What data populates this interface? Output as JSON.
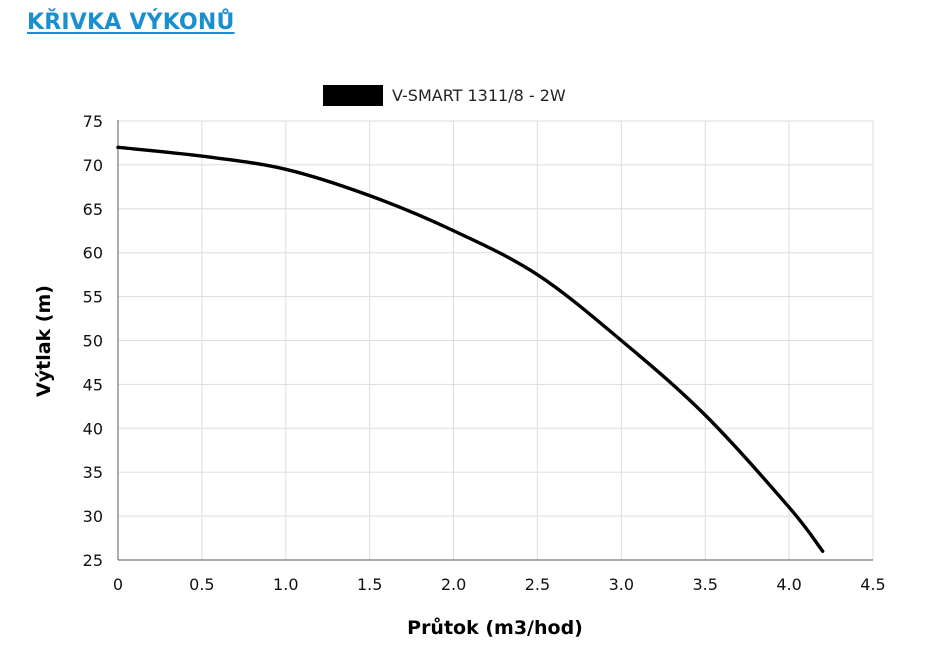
{
  "header": {
    "title": "KŘIVKA VÝKONŮ"
  },
  "chart_data": {
    "type": "line",
    "title": "",
    "xlabel": "Průtok (m3/hod)",
    "ylabel": "Výtlak (m)",
    "xlim": [
      0,
      4.5
    ],
    "ylim": [
      25,
      75
    ],
    "x_ticks": [
      "0",
      "0.5",
      "1.0",
      "1.5",
      "2.0",
      "2.5",
      "3.0",
      "3.5",
      "4.0",
      "4.5"
    ],
    "y_ticks": [
      "25",
      "30",
      "35",
      "40",
      "45",
      "50",
      "55",
      "60",
      "65",
      "70",
      "75"
    ],
    "grid": true,
    "legend": "top-center",
    "series": [
      {
        "name": "V-SMART 1311/8 - 2W",
        "color": "#000000",
        "x": [
          0,
          0.5,
          1.0,
          1.5,
          2.0,
          2.5,
          3.0,
          3.5,
          4.0,
          4.2
        ],
        "y": [
          72,
          71,
          69.5,
          66.5,
          62.5,
          57.5,
          50,
          41.5,
          31,
          26
        ]
      }
    ]
  }
}
